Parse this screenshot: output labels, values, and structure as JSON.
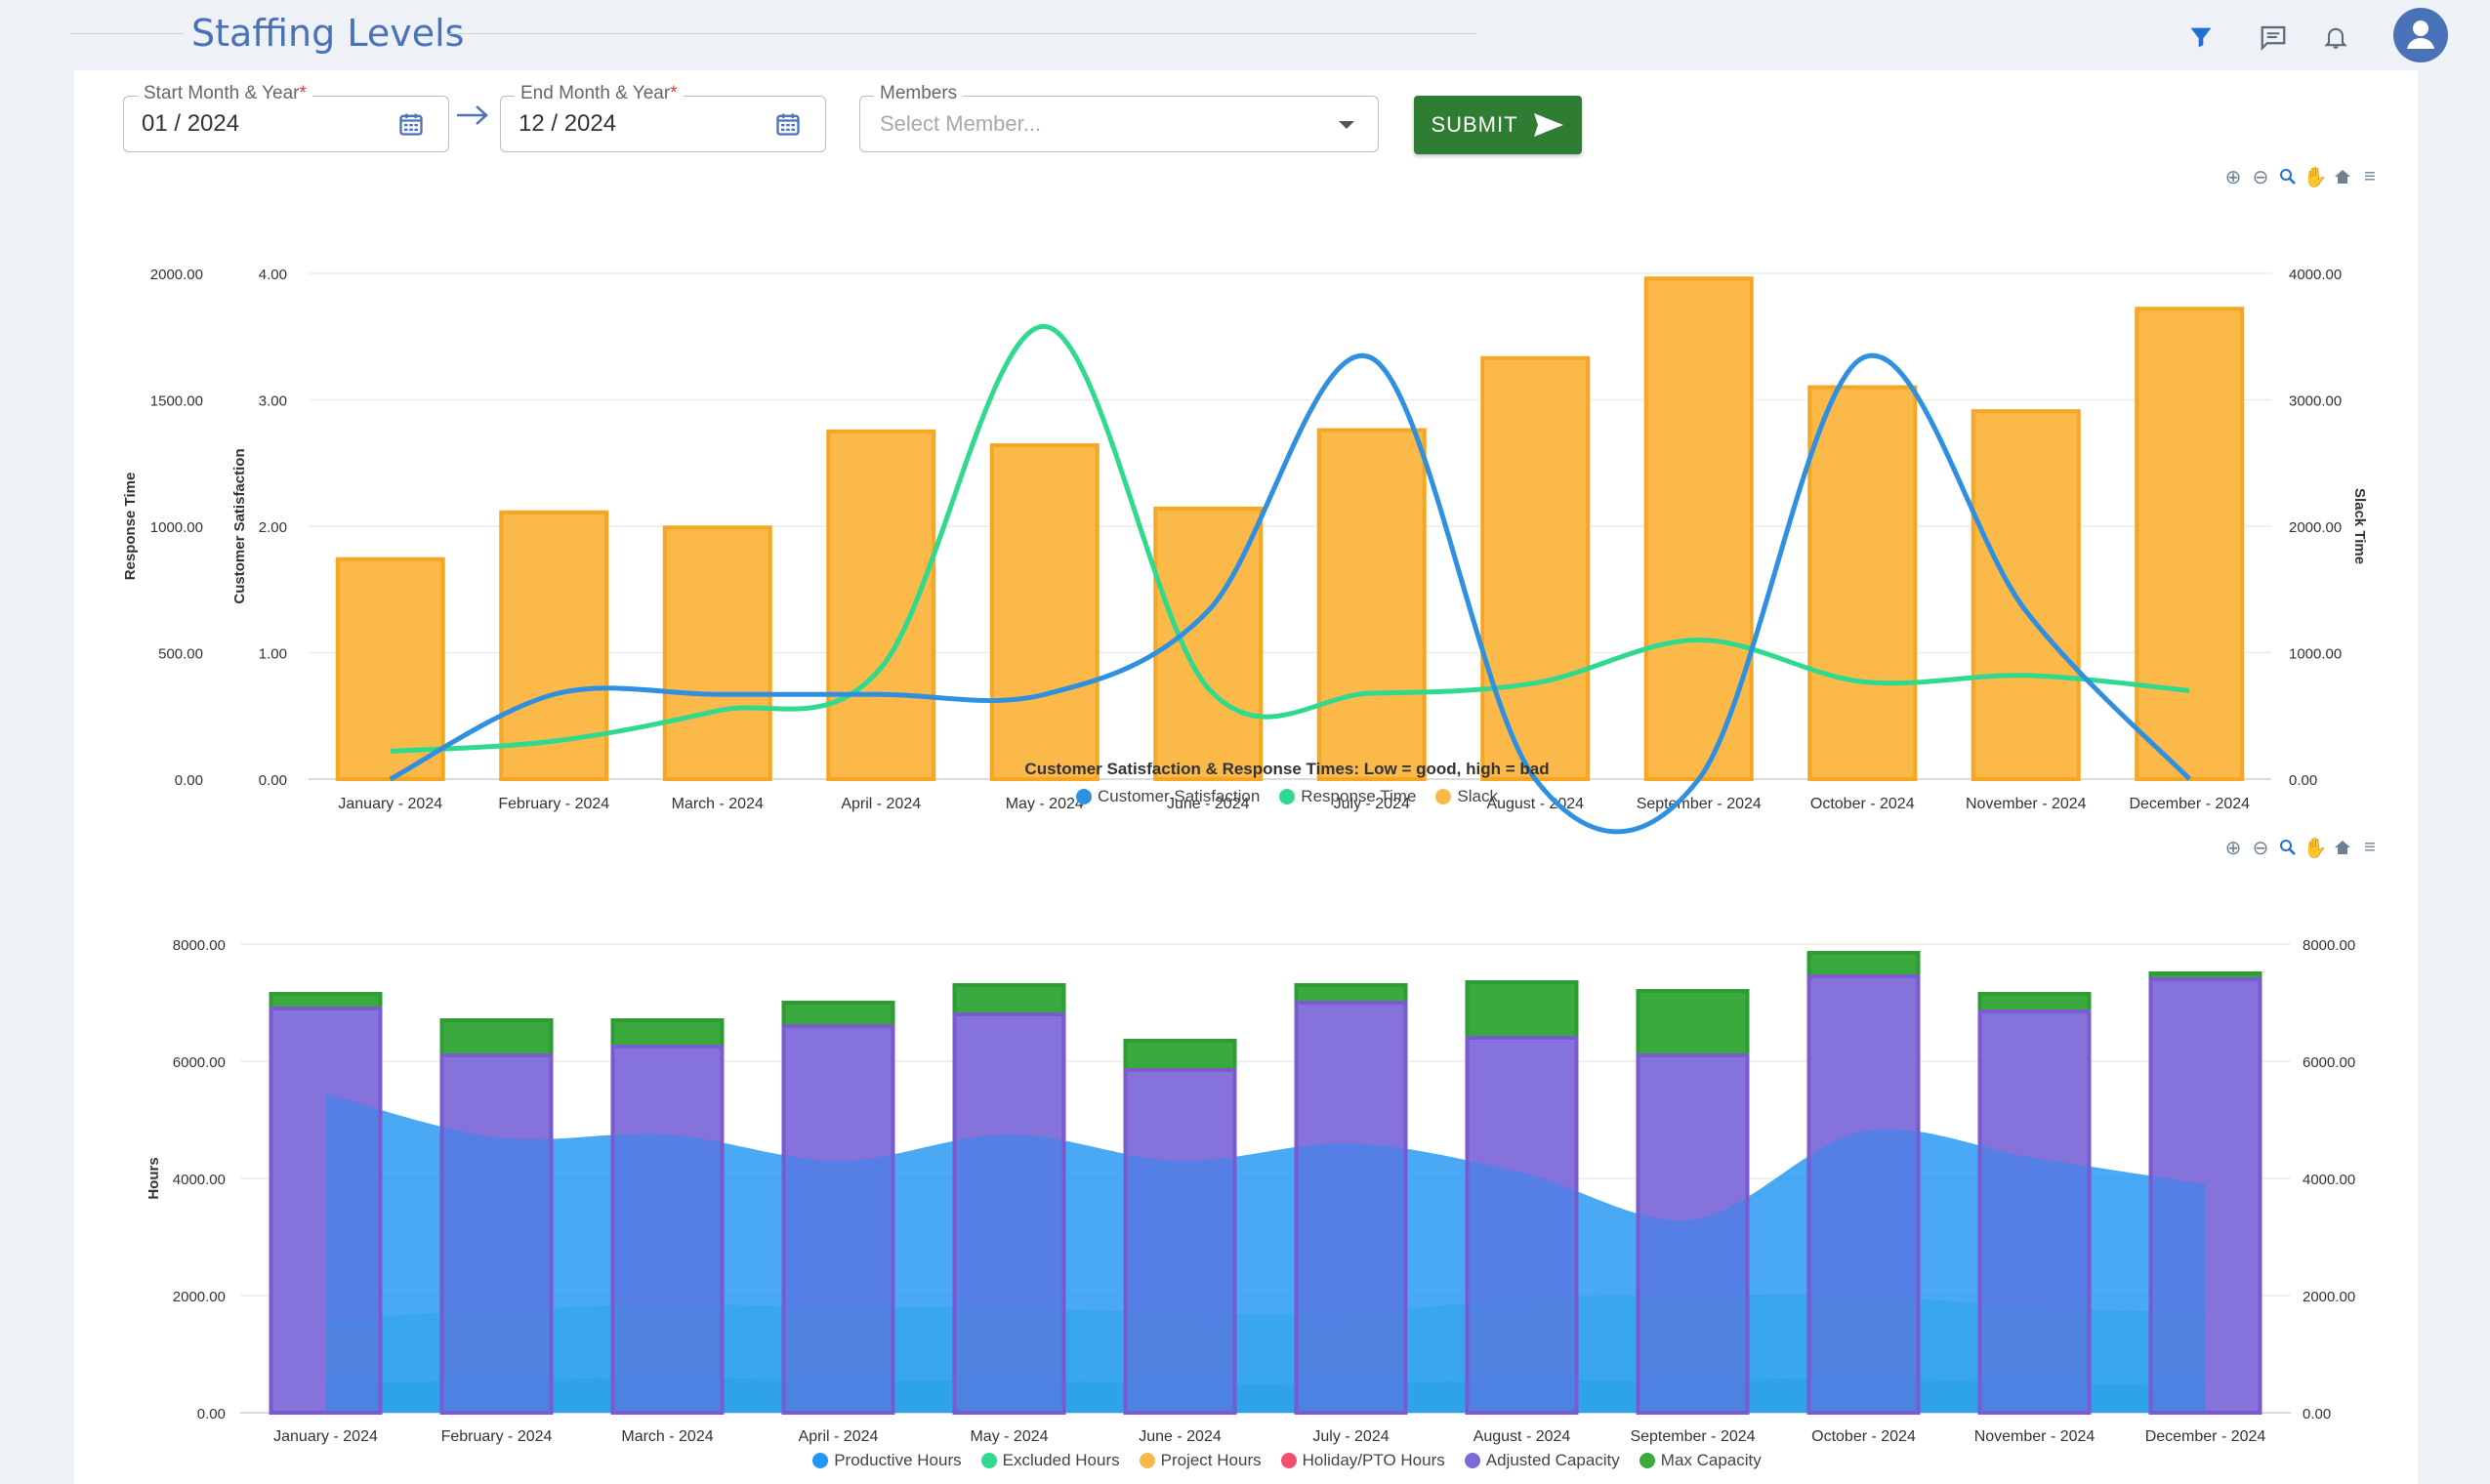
{
  "header": {
    "title": "Staffing Levels",
    "icons": [
      "filter-icon",
      "chat-icon",
      "bell-icon",
      "user-avatar-icon"
    ],
    "accent": "#4a72b8"
  },
  "filters": {
    "start": {
      "label": "Start Month & Year",
      "required_mark": "*",
      "value": "01 / 2024"
    },
    "end": {
      "label": "End Month & Year",
      "required_mark": "*",
      "value": "12 / 2024"
    },
    "members": {
      "label": "Members",
      "placeholder": "Select Member..."
    },
    "submit_label": "SUBMIT"
  },
  "toolbar_icons": [
    "zoom-in-icon",
    "zoom-out-icon",
    "zoom-select-icon",
    "pan-icon",
    "home-icon",
    "menu-icon"
  ],
  "chart_data": [
    {
      "type": "bar",
      "title": "Customer Satisfaction & Response Times: Low = good, high = bad",
      "categories": [
        "January - 2024",
        "February - 2024",
        "March - 2024",
        "April - 2024",
        "May - 2024",
        "June - 2024",
        "July - 2024",
        "August - 2024",
        "September - 2024",
        "October - 2024",
        "November - 2024",
        "December - 2024"
      ],
      "axes": {
        "left_outer": {
          "label": "Response Time",
          "range": [
            0,
            2000
          ],
          "ticks": [
            "0.00",
            "500.00",
            "1000.00",
            "1500.00",
            "2000.00"
          ]
        },
        "left_inner": {
          "label": "Customer Satisfaction",
          "range": [
            0,
            4
          ],
          "ticks": [
            "0.00",
            "1.00",
            "2.00",
            "3.00",
            "4.00"
          ]
        },
        "right": {
          "label": "Slack Time",
          "range": [
            0,
            4000
          ],
          "ticks": [
            "0.00",
            "1000.00",
            "2000.00",
            "3000.00",
            "4000.00"
          ]
        }
      },
      "series": [
        {
          "name": "Customer Satisfaction",
          "kind": "line",
          "axis": "left_inner",
          "color": "#2f8fe0",
          "values": [
            0,
            0.67,
            0.67,
            0.67,
            0.67,
            1.33,
            3.33,
            0,
            0,
            3.33,
            1.33,
            0
          ]
        },
        {
          "name": "Response Time",
          "kind": "line",
          "axis": "left_outer",
          "color": "#2fd98e",
          "values": [
            110,
            150,
            270,
            440,
            1790,
            360,
            340,
            380,
            550,
            385,
            410,
            350
          ]
        },
        {
          "name": "Slack",
          "kind": "bar",
          "axis": "right",
          "color": "#fbb94a",
          "values": [
            1740,
            2110,
            1990,
            2750,
            2640,
            2140,
            2760,
            3330,
            3960,
            3100,
            2910,
            3720
          ]
        }
      ],
      "legend_position": "bottom-center",
      "grid": true
    },
    {
      "type": "bar",
      "title": "",
      "categories": [
        "January - 2024",
        "February - 2024",
        "March - 2024",
        "April - 2024",
        "May - 2024",
        "June - 2024",
        "July - 2024",
        "August - 2024",
        "September - 2024",
        "October - 2024",
        "November - 2024",
        "December - 2024"
      ],
      "axes": {
        "left": {
          "label": "Hours",
          "range": [
            0,
            8000
          ],
          "ticks": [
            "0.00",
            "2000.00",
            "4000.00",
            "6000.00",
            "8000.00"
          ]
        },
        "right": {
          "label": "",
          "range": [
            0,
            8000
          ],
          "ticks": [
            "0.00",
            "2000.00",
            "4000.00",
            "6000.00",
            "8000.00"
          ]
        }
      },
      "series": [
        {
          "name": "Productive Hours",
          "kind": "area",
          "color": "#2196f3",
          "values": [
            5450,
            4700,
            4750,
            4300,
            4750,
            4300,
            4600,
            4100,
            3300,
            4800,
            4350,
            3900
          ]
        },
        {
          "name": "Excluded Hours",
          "kind": "area",
          "color": "#2fd98e",
          "values": [
            1600,
            1750,
            1850,
            1800,
            1800,
            1700,
            1700,
            1950,
            2000,
            2000,
            1800,
            1700
          ]
        },
        {
          "name": "Project Hours",
          "kind": "area",
          "color": "#fbb94a",
          "values": [
            500,
            550,
            600,
            550,
            550,
            500,
            500,
            550,
            550,
            600,
            500,
            500
          ]
        },
        {
          "name": "Holiday/PTO Hours",
          "kind": "area",
          "color": "#f0506e",
          "values": [
            0,
            0,
            0,
            0,
            0,
            0,
            0,
            0,
            0,
            0,
            0,
            0
          ]
        },
        {
          "name": "Adjusted Capacity",
          "kind": "bar",
          "color": "#7e6ad8",
          "values": [
            6900,
            6100,
            6250,
            6600,
            6800,
            5850,
            7000,
            6400,
            6100,
            7450,
            6850,
            7400
          ]
        },
        {
          "name": "Max Capacity",
          "kind": "bar-stack-top",
          "color": "#3aaa3e",
          "values": [
            7150,
            6700,
            6700,
            7000,
            7300,
            6350,
            7300,
            7350,
            7200,
            7850,
            7150,
            7500
          ]
        }
      ],
      "legend_position": "bottom-center",
      "grid": true
    }
  ]
}
